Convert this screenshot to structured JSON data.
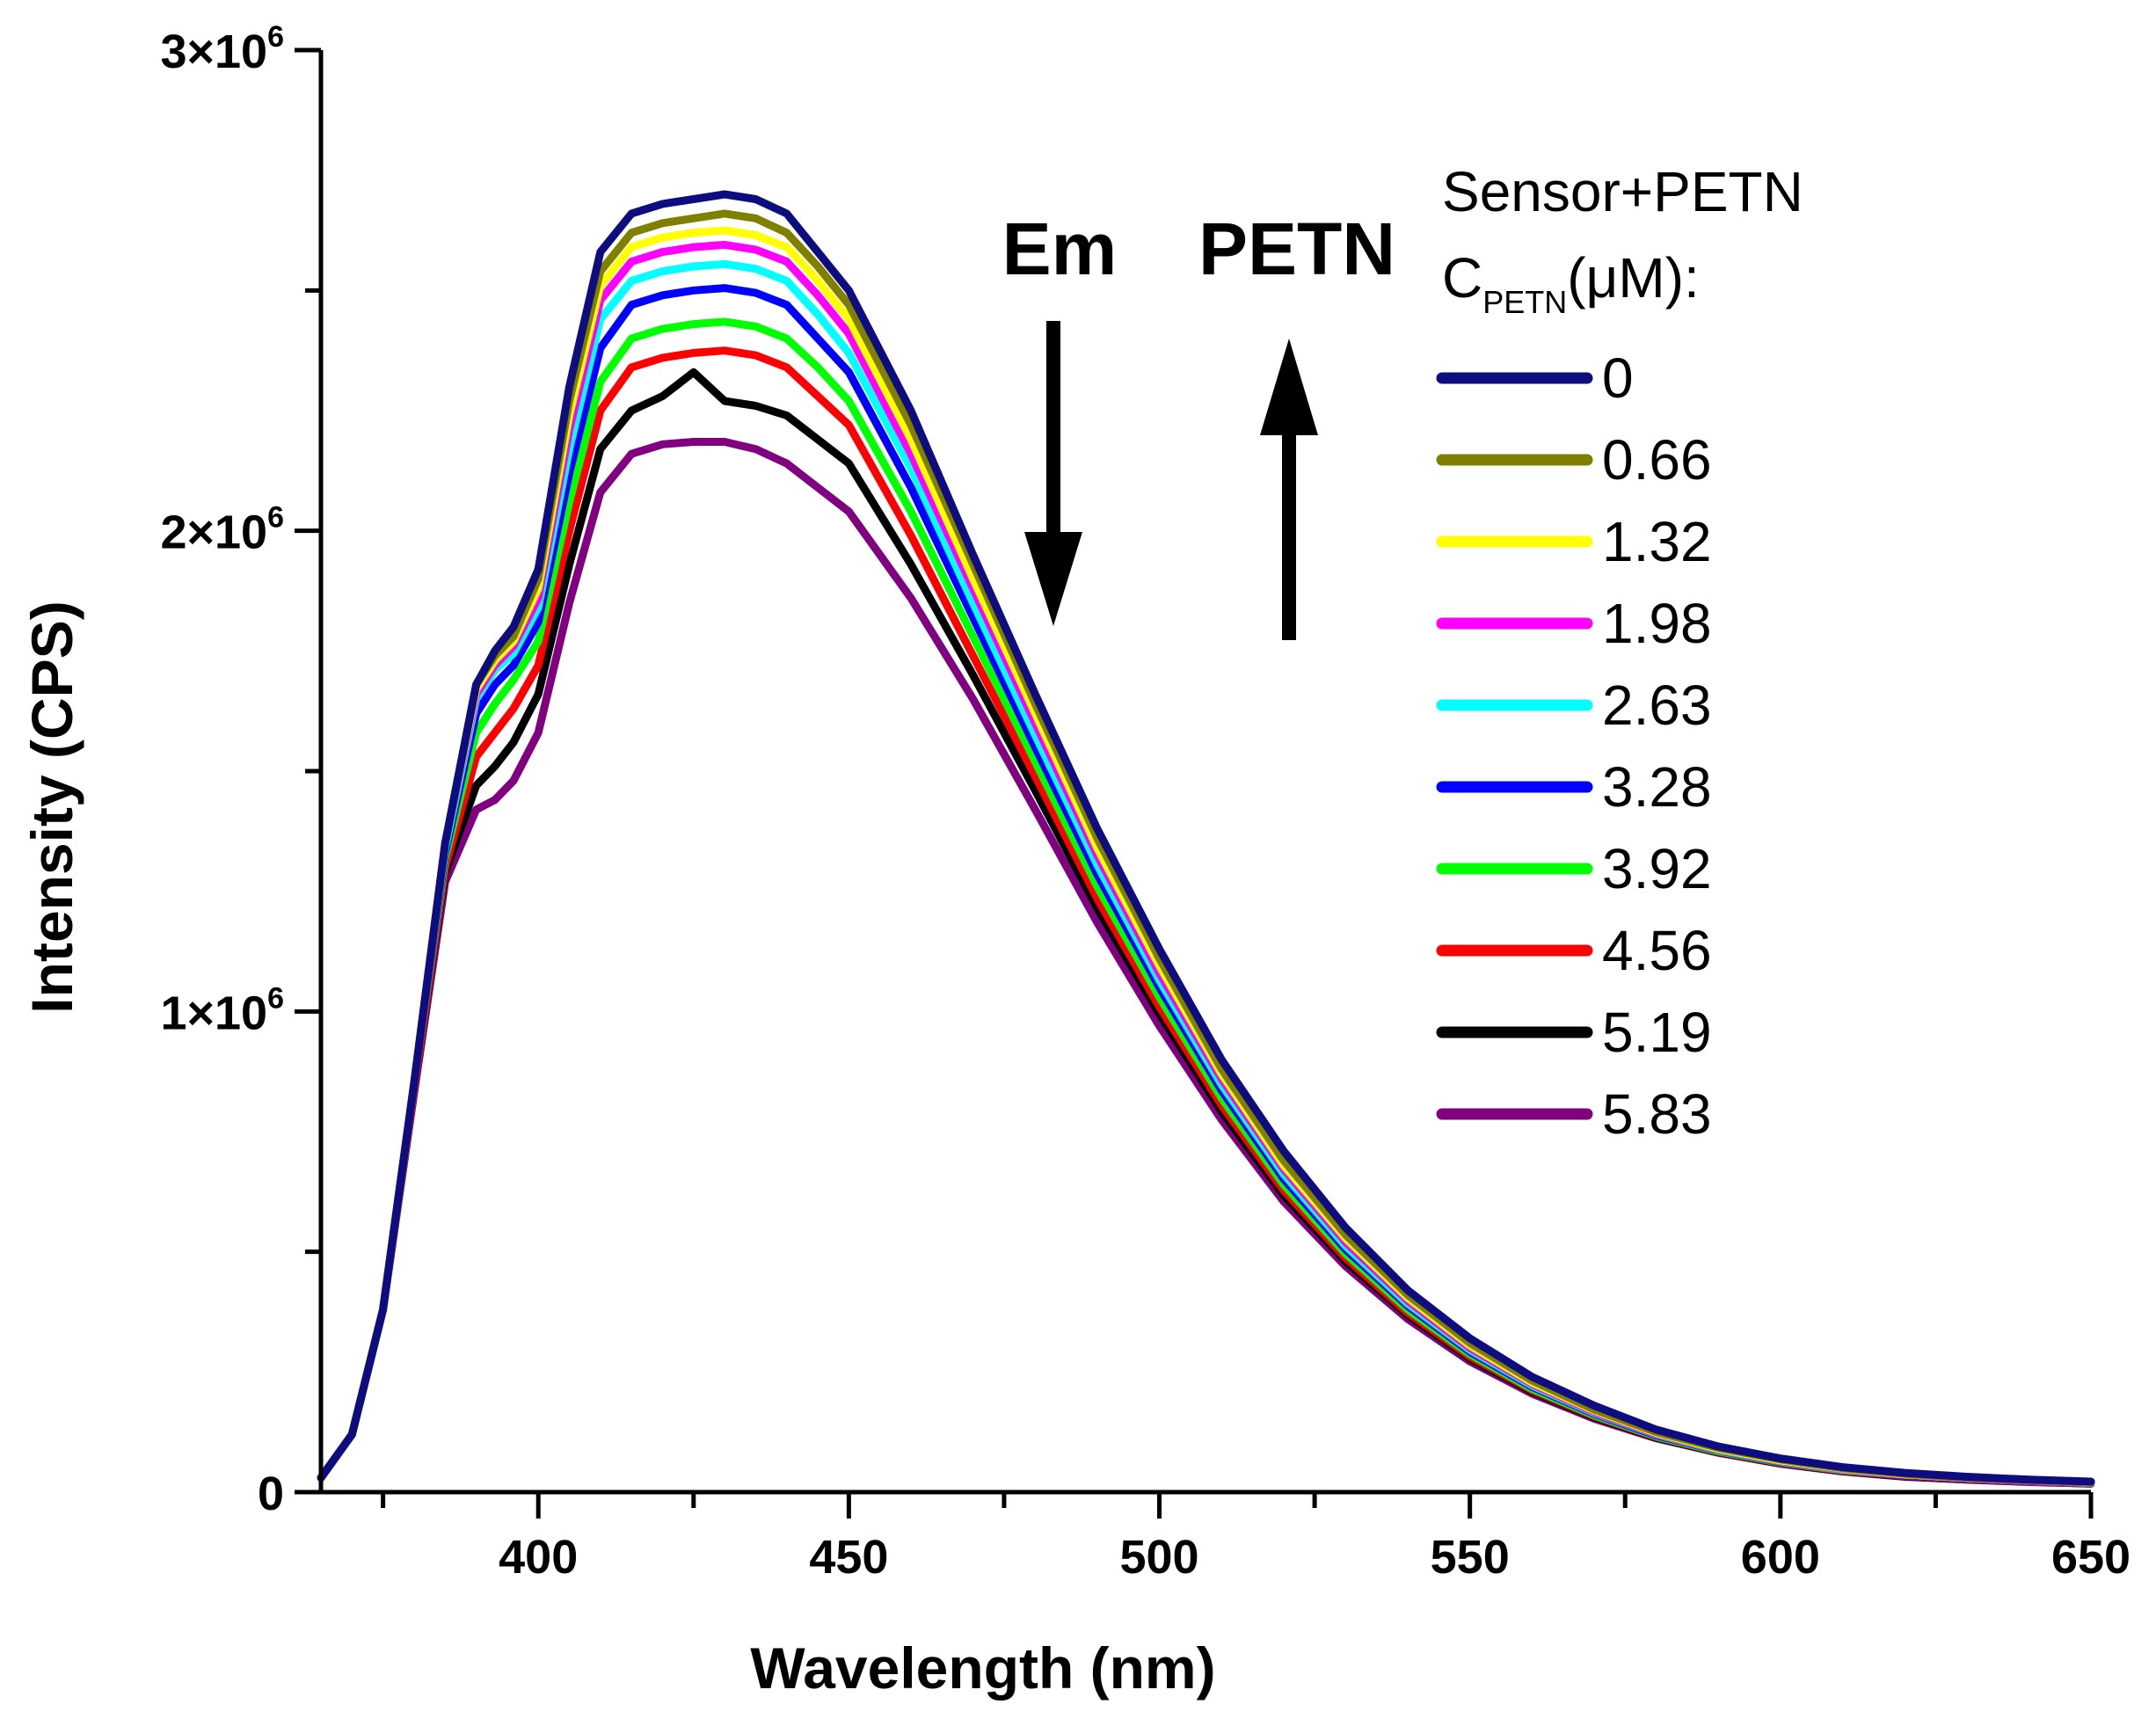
{
  "chart_data": {
    "type": "line",
    "title": "",
    "xlabel": "Wavelength (nm)",
    "ylabel": "Intensity (CPS)",
    "xlim": [
      365,
      650
    ],
    "ylim": [
      0,
      3000000
    ],
    "x_ticks": [
      400,
      450,
      500,
      550,
      600,
      650
    ],
    "y_ticks": [
      {
        "value": 0,
        "label": "0",
        "sup": ""
      },
      {
        "value": 1000000,
        "label": "1×10",
        "sup": "6"
      },
      {
        "value": 2000000,
        "label": "2×10",
        "sup": "6"
      },
      {
        "value": 3000000,
        "label": "3×10",
        "sup": "6"
      }
    ],
    "grid": false,
    "legend": {
      "placement": "top-right",
      "title_line1": "Sensor+PETN",
      "title_line2_main": "C",
      "title_line2_sub": "PETN",
      "title_line2_rest": "(μM):"
    },
    "annotations": {
      "em_label": "Em",
      "em_arrow": "down",
      "petn_label": "PETN",
      "petn_arrow": "up"
    },
    "x": [
      365,
      370,
      375,
      380,
      385,
      390,
      393,
      396,
      400,
      405,
      410,
      415,
      420,
      425,
      430,
      435,
      440,
      445,
      450,
      460,
      470,
      480,
      490,
      500,
      510,
      520,
      530,
      540,
      550,
      560,
      570,
      580,
      590,
      600,
      610,
      620,
      630,
      640,
      650
    ],
    "series": [
      {
        "name": "0",
        "color": "#0d0d80",
        "values": [
          30000,
          120000,
          380000,
          850000,
          1350000,
          1680000,
          1750000,
          1800000,
          1920000,
          2300000,
          2580000,
          2660000,
          2680000,
          2690000,
          2700000,
          2690000,
          2660000,
          2580000,
          2500000,
          2250000,
          1950000,
          1660000,
          1380000,
          1130000,
          900000,
          710000,
          550000,
          420000,
          320000,
          240000,
          180000,
          130000,
          95000,
          70000,
          52000,
          40000,
          32000,
          26000,
          22000
        ]
      },
      {
        "name": "0.66",
        "color": "#808000",
        "values": [
          30000,
          120000,
          380000,
          850000,
          1350000,
          1680000,
          1740000,
          1780000,
          1900000,
          2270000,
          2540000,
          2620000,
          2640000,
          2650000,
          2660000,
          2650000,
          2620000,
          2550000,
          2470000,
          2220000,
          1930000,
          1640000,
          1360000,
          1110000,
          880000,
          690000,
          535000,
          410000,
          310000,
          232000,
          172000,
          125000,
          92000,
          68000,
          50000,
          38000,
          30000,
          25000,
          21000
        ]
      },
      {
        "name": "1.32",
        "color": "#ffff00",
        "values": [
          30000,
          120000,
          380000,
          850000,
          1350000,
          1670000,
          1730000,
          1770000,
          1880000,
          2240000,
          2510000,
          2590000,
          2610000,
          2620000,
          2625000,
          2615000,
          2590000,
          2520000,
          2440000,
          2190000,
          1900000,
          1620000,
          1340000,
          1095000,
          870000,
          680000,
          528000,
          404000,
          305000,
          228000,
          170000,
          123000,
          90000,
          66000,
          49000,
          37000,
          30000,
          25000,
          21000
        ]
      },
      {
        "name": "1.98",
        "color": "#ff00ff",
        "values": [
          30000,
          120000,
          380000,
          850000,
          1350000,
          1660000,
          1720000,
          1760000,
          1860000,
          2210000,
          2480000,
          2560000,
          2580000,
          2590000,
          2595000,
          2585000,
          2560000,
          2490000,
          2410000,
          2160000,
          1880000,
          1600000,
          1325000,
          1080000,
          860000,
          672000,
          520000,
          398000,
          300000,
          225000,
          167000,
          121000,
          89000,
          65000,
          48000,
          36000,
          29000,
          24000,
          20000
        ]
      },
      {
        "name": "2.63",
        "color": "#00ffff",
        "values": [
          30000,
          120000,
          380000,
          850000,
          1340000,
          1650000,
          1710000,
          1745000,
          1840000,
          2170000,
          2440000,
          2520000,
          2540000,
          2550000,
          2555000,
          2545000,
          2520000,
          2450000,
          2370000,
          2130000,
          1850000,
          1575000,
          1305000,
          1065000,
          848000,
          662000,
          512000,
          392000,
          296000,
          222000,
          165000,
          120000,
          88000,
          64000,
          47000,
          36000,
          29000,
          24000,
          20000
        ]
      },
      {
        "name": "3.28",
        "color": "#0000ff",
        "values": [
          30000,
          120000,
          380000,
          850000,
          1330000,
          1620000,
          1680000,
          1720000,
          1810000,
          2120000,
          2380000,
          2470000,
          2490000,
          2500000,
          2505000,
          2495000,
          2470000,
          2400000,
          2330000,
          2090000,
          1820000,
          1550000,
          1285000,
          1050000,
          836000,
          652000,
          505000,
          387000,
          292000,
          219000,
          163000,
          118000,
          87000,
          63000,
          47000,
          35000,
          28000,
          23000,
          20000
        ]
      },
      {
        "name": "3.92",
        "color": "#00ff00",
        "values": [
          30000,
          120000,
          380000,
          850000,
          1320000,
          1580000,
          1640000,
          1690000,
          1770000,
          2060000,
          2310000,
          2400000,
          2420000,
          2430000,
          2435000,
          2425000,
          2400000,
          2340000,
          2270000,
          2040000,
          1780000,
          1520000,
          1260000,
          1030000,
          820000,
          640000,
          496000,
          380000,
          287000,
          215000,
          160000,
          116000,
          85000,
          62000,
          46000,
          35000,
          28000,
          23000,
          19000
        ]
      },
      {
        "name": "4.56",
        "color": "#ff0000",
        "values": [
          30000,
          120000,
          380000,
          840000,
          1300000,
          1530000,
          1580000,
          1630000,
          1720000,
          2000000,
          2250000,
          2340000,
          2360000,
          2370000,
          2375000,
          2365000,
          2340000,
          2280000,
          2220000,
          1990000,
          1740000,
          1490000,
          1235000,
          1010000,
          805000,
          628000,
          487000,
          373000,
          282000,
          212000,
          158000,
          115000,
          84000,
          61000,
          45000,
          34000,
          27000,
          22000,
          19000
        ]
      },
      {
        "name": "5.19",
        "color": "#000000",
        "values": [
          30000,
          120000,
          380000,
          840000,
          1290000,
          1470000,
          1510000,
          1560000,
          1660000,
          1930000,
          2170000,
          2250000,
          2280000,
          2330000,
          2270000,
          2260000,
          2240000,
          2190000,
          2140000,
          1930000,
          1700000,
          1460000,
          1215000,
          995000,
          792000,
          618000,
          480000,
          368000,
          278000,
          209000,
          156000,
          114000,
          83000,
          60000,
          44000,
          33000,
          26000,
          22000,
          18000
        ]
      },
      {
        "name": "5.83",
        "color": "#800080",
        "values": [
          30000,
          120000,
          380000,
          830000,
          1270000,
          1420000,
          1440000,
          1480000,
          1580000,
          1850000,
          2080000,
          2160000,
          2180000,
          2185000,
          2185000,
          2170000,
          2140000,
          2090000,
          2040000,
          1860000,
          1650000,
          1420000,
          1185000,
          970000,
          775000,
          605000,
          470000,
          360000,
          272000,
          205000,
          153000,
          112000,
          82000,
          59000,
          43000,
          32000,
          26000,
          21000,
          18000
        ]
      }
    ]
  }
}
